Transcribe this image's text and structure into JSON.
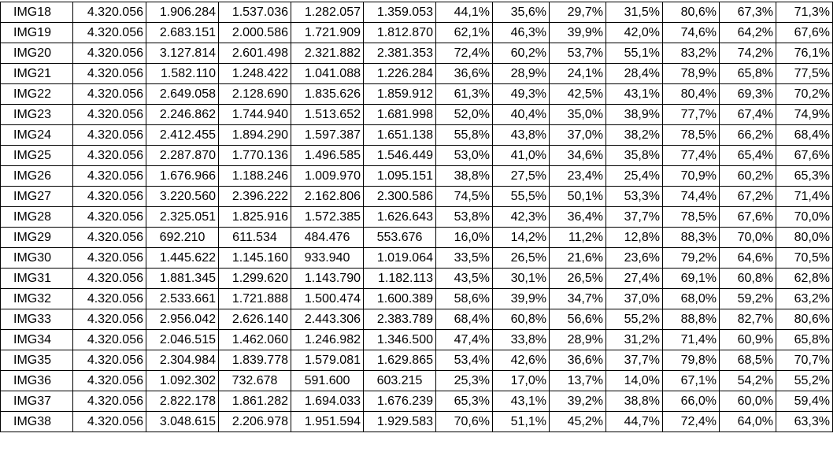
{
  "table": {
    "rows": [
      [
        "IMG18",
        "4.320.056",
        "1.906.284",
        "1.537.036",
        "1.282.057",
        "1.359.053",
        "44,1%",
        "35,6%",
        "29,7%",
        "31,5%",
        "80,6%",
        "67,3%",
        "71,3%"
      ],
      [
        "IMG19",
        "4.320.056",
        "2.683.151",
        "2.000.586",
        "1.721.909",
        "1.812.870",
        "62,1%",
        "46,3%",
        "39,9%",
        "42,0%",
        "74,6%",
        "64,2%",
        "67,6%"
      ],
      [
        "IMG20",
        "4.320.056",
        "3.127.814",
        "2.601.498",
        "2.321.882",
        "2.381.353",
        "72,4%",
        "60,2%",
        "53,7%",
        "55,1%",
        "83,2%",
        "74,2%",
        "76,1%"
      ],
      [
        "IMG21",
        "4.320.056",
        "1.582.110",
        "1.248.422",
        "1.041.088",
        "1.226.284",
        "36,6%",
        "28,9%",
        "24,1%",
        "28,4%",
        "78,9%",
        "65,8%",
        "77,5%"
      ],
      [
        "IMG22",
        "4.320.056",
        "2.649.058",
        "2.128.690",
        "1.835.626",
        "1.859.912",
        "61,3%",
        "49,3%",
        "42,5%",
        "43,1%",
        "80,4%",
        "69,3%",
        "70,2%"
      ],
      [
        "IMG23",
        "4.320.056",
        "2.246.862",
        "1.744.940",
        "1.513.652",
        "1.681.998",
        "52,0%",
        "40,4%",
        "35,0%",
        "38,9%",
        "77,7%",
        "67,4%",
        "74,9%"
      ],
      [
        "IMG24",
        "4.320.056",
        "2.412.455",
        "1.894.290",
        "1.597.387",
        "1.651.138",
        "55,8%",
        "43,8%",
        "37,0%",
        "38,2%",
        "78,5%",
        "66,2%",
        "68,4%"
      ],
      [
        "IMG25",
        "4.320.056",
        "2.287.870",
        "1.770.136",
        "1.496.585",
        "1.546.449",
        "53,0%",
        "41,0%",
        "34,6%",
        "35,8%",
        "77,4%",
        "65,4%",
        "67,6%"
      ],
      [
        "IMG26",
        "4.320.056",
        "1.676.966",
        "1.188.246",
        "1.009.970",
        "1.095.151",
        "38,8%",
        "27,5%",
        "23,4%",
        "25,4%",
        "70,9%",
        "60,2%",
        "65,3%"
      ],
      [
        "IMG27",
        "4.320.056",
        "3.220.560",
        "2.396.222",
        "2.162.806",
        "2.300.586",
        "74,5%",
        "55,5%",
        "50,1%",
        "53,3%",
        "74,4%",
        "67,2%",
        "71,4%"
      ],
      [
        "IMG28",
        "4.320.056",
        "2.325.051",
        "1.825.916",
        "1.572.385",
        "1.626.643",
        "53,8%",
        "42,3%",
        "36,4%",
        "37,7%",
        "78,5%",
        "67,6%",
        "70,0%"
      ],
      [
        "IMG29",
        "4.320.056",
        "692.210",
        "611.534",
        "484.476",
        "553.676",
        "16,0%",
        "14,2%",
        "11,2%",
        "12,8%",
        "88,3%",
        "70,0%",
        "80,0%"
      ],
      [
        "IMG30",
        "4.320.056",
        "1.445.622",
        "1.145.160",
        "933.940",
        "1.019.064",
        "33,5%",
        "26,5%",
        "21,6%",
        "23,6%",
        "79,2%",
        "64,6%",
        "70,5%"
      ],
      [
        "IMG31",
        "4.320.056",
        "1.881.345",
        "1.299.620",
        "1.143.790",
        "1.182.113",
        "43,5%",
        "30,1%",
        "26,5%",
        "27,4%",
        "69,1%",
        "60,8%",
        "62,8%"
      ],
      [
        "IMG32",
        "4.320.056",
        "2.533.661",
        "1.721.888",
        "1.500.474",
        "1.600.389",
        "58,6%",
        "39,9%",
        "34,7%",
        "37,0%",
        "68,0%",
        "59,2%",
        "63,2%"
      ],
      [
        "IMG33",
        "4.320.056",
        "2.956.042",
        "2.626.140",
        "2.443.306",
        "2.383.789",
        "68,4%",
        "60,8%",
        "56,6%",
        "55,2%",
        "88,8%",
        "82,7%",
        "80,6%"
      ],
      [
        "IMG34",
        "4.320.056",
        "2.046.515",
        "1.462.060",
        "1.246.982",
        "1.346.500",
        "47,4%",
        "33,8%",
        "28,9%",
        "31,2%",
        "71,4%",
        "60,9%",
        "65,8%"
      ],
      [
        "IMG35",
        "4.320.056",
        "2.304.984",
        "1.839.778",
        "1.579.081",
        "1.629.865",
        "53,4%",
        "42,6%",
        "36,6%",
        "37,7%",
        "79,8%",
        "68,5%",
        "70,7%"
      ],
      [
        "IMG36",
        "4.320.056",
        "1.092.302",
        "732.678",
        "591.600",
        "603.215",
        "25,3%",
        "17,0%",
        "13,7%",
        "14,0%",
        "67,1%",
        "54,2%",
        "55,2%"
      ],
      [
        "IMG37",
        "4.320.056",
        "2.822.178",
        "1.861.282",
        "1.694.033",
        "1.676.239",
        "65,3%",
        "43,1%",
        "39,2%",
        "38,8%",
        "66,0%",
        "60,0%",
        "59,4%"
      ],
      [
        "IMG38",
        "4.320.056",
        "3.048.615",
        "2.206.978",
        "1.951.594",
        "1.929.583",
        "70,6%",
        "51,1%",
        "45,2%",
        "44,7%",
        "72,4%",
        "64,0%",
        "63,3%"
      ]
    ]
  }
}
